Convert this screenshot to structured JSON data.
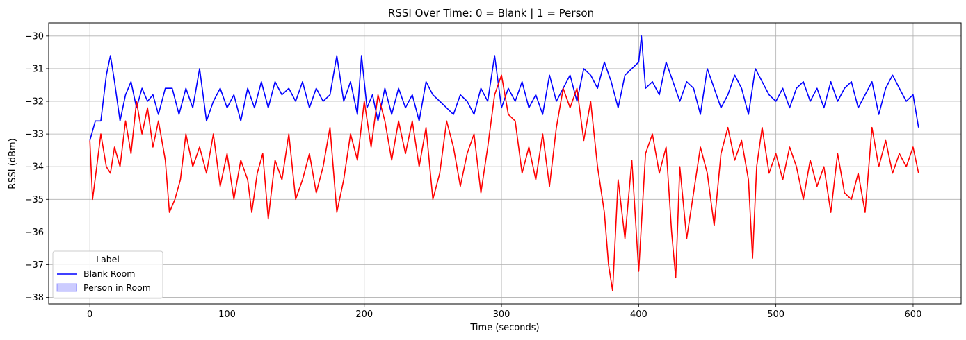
{
  "chart_data": {
    "type": "line",
    "title": "RSSI Over Time: 0 = Blank | 1 = Person",
    "xlabel": "Time (seconds)",
    "ylabel": "RSSI (dBm)",
    "xlim": [
      -30,
      635
    ],
    "ylim": [
      -38.2,
      -29.6
    ],
    "x_ticks": [
      0,
      100,
      200,
      300,
      400,
      500,
      600
    ],
    "y_ticks": [
      -30,
      -31,
      -32,
      -33,
      -34,
      -35,
      -36,
      -37,
      -38
    ],
    "x_tick_labels": [
      "0",
      "100",
      "200",
      "300",
      "400",
      "500",
      "600"
    ],
    "y_tick_labels": [
      "−30",
      "−31",
      "−32",
      "−33",
      "−34",
      "−35",
      "−36",
      "−37",
      "−38"
    ],
    "grid": true,
    "legend": {
      "title": "Label",
      "placement": "lower-left",
      "entries": [
        {
          "label": "Blank Room",
          "kind": "line",
          "color": "#0000ff"
        },
        {
          "label": "Person in Room",
          "kind": "patch",
          "color": "#0000ff"
        }
      ]
    },
    "series": [
      {
        "color": "#0000ff",
        "x": [
          0,
          4,
          8,
          12,
          15,
          18,
          22,
          26,
          30,
          34,
          38,
          42,
          46,
          50,
          55,
          60,
          65,
          70,
          75,
          80,
          85,
          90,
          95,
          100,
          105,
          110,
          115,
          120,
          125,
          130,
          135,
          140,
          145,
          150,
          155,
          160,
          165,
          170,
          175,
          180,
          185,
          190,
          195,
          198,
          202,
          206,
          210,
          215,
          220,
          225,
          230,
          235,
          240,
          245,
          250,
          255,
          260,
          265,
          270,
          275,
          280,
          285,
          290,
          295,
          300,
          305,
          310,
          315,
          320,
          325,
          330,
          335,
          340,
          345,
          350,
          355,
          360,
          365,
          370,
          375,
          380,
          385,
          390,
          395,
          400,
          402,
          405,
          410,
          415,
          420,
          425,
          430,
          435,
          440,
          445,
          450,
          455,
          460,
          465,
          470,
          475,
          480,
          485,
          490,
          495,
          500,
          505,
          510,
          515,
          520,
          525,
          530,
          535,
          540,
          545,
          550,
          555,
          560,
          565,
          570,
          575,
          580,
          585,
          590,
          595,
          600,
          604
        ],
        "y": [
          -33.2,
          -32.6,
          -32.6,
          -31.2,
          -30.6,
          -31.4,
          -32.6,
          -31.8,
          -31.4,
          -32.2,
          -31.6,
          -32.0,
          -31.8,
          -32.4,
          -31.6,
          -31.6,
          -32.4,
          -31.6,
          -32.2,
          -31.0,
          -32.6,
          -32.0,
          -31.6,
          -32.2,
          -31.8,
          -32.6,
          -31.6,
          -32.2,
          -31.4,
          -32.2,
          -31.4,
          -31.8,
          -31.6,
          -32.0,
          -31.4,
          -32.2,
          -31.6,
          -32.0,
          -31.8,
          -30.6,
          -32.0,
          -31.4,
          -32.4,
          -30.6,
          -32.2,
          -31.8,
          -32.6,
          -31.6,
          -32.4,
          -31.6,
          -32.2,
          -31.8,
          -32.6,
          -31.4,
          -31.8,
          -32.0,
          -32.2,
          -32.4,
          -31.8,
          -32.0,
          -32.4,
          -31.6,
          -32.0,
          -30.6,
          -32.2,
          -31.6,
          -32.0,
          -31.4,
          -32.2,
          -31.8,
          -32.4,
          -31.2,
          -32.0,
          -31.6,
          -31.2,
          -32.0,
          -31.0,
          -31.2,
          -31.6,
          -30.8,
          -31.4,
          -32.2,
          -31.2,
          -31.0,
          -30.8,
          -30.0,
          -31.6,
          -31.4,
          -31.8,
          -30.8,
          -31.4,
          -32.0,
          -31.4,
          -31.6,
          -32.4,
          -31.0,
          -31.6,
          -32.2,
          -31.8,
          -31.2,
          -31.6,
          -32.4,
          -31.0,
          -31.4,
          -31.8,
          -32.0,
          -31.6,
          -32.2,
          -31.6,
          -31.4,
          -32.0,
          -31.6,
          -32.2,
          -31.4,
          -32.0,
          -31.6,
          -31.4,
          -32.2,
          -31.8,
          -31.4,
          -32.4,
          -31.6,
          -31.2,
          -31.6,
          -32.0,
          -31.8,
          -32.8
        ]
      },
      {
        "color": "#ff0000",
        "x": [
          0,
          2,
          5,
          8,
          12,
          15,
          18,
          22,
          26,
          30,
          34,
          38,
          42,
          46,
          50,
          55,
          58,
          62,
          66,
          70,
          75,
          80,
          85,
          90,
          95,
          100,
          105,
          110,
          115,
          118,
          122,
          126,
          130,
          135,
          140,
          145,
          150,
          155,
          160,
          165,
          170,
          175,
          180,
          185,
          190,
          195,
          200,
          205,
          210,
          215,
          220,
          225,
          230,
          235,
          240,
          245,
          250,
          255,
          260,
          265,
          270,
          275,
          280,
          285,
          290,
          295,
          300,
          305,
          310,
          315,
          320,
          325,
          330,
          335,
          340,
          345,
          350,
          355,
          360,
          365,
          370,
          375,
          378,
          381,
          385,
          390,
          395,
          400,
          405,
          410,
          415,
          420,
          424,
          427,
          430,
          435,
          440,
          445,
          450,
          455,
          460,
          465,
          470,
          475,
          480,
          483,
          486,
          490,
          495,
          500,
          505,
          510,
          515,
          520,
          525,
          530,
          535,
          540,
          545,
          550,
          555,
          560,
          565,
          570,
          575,
          580,
          585,
          590,
          595,
          600,
          604
        ],
        "y": [
          -33.2,
          -35.0,
          -34.0,
          -33.0,
          -34.0,
          -34.2,
          -33.4,
          -34.0,
          -32.6,
          -33.6,
          -32.0,
          -33.0,
          -32.2,
          -33.4,
          -32.6,
          -33.8,
          -35.4,
          -35.0,
          -34.4,
          -33.0,
          -34.0,
          -33.4,
          -34.2,
          -33.0,
          -34.6,
          -33.6,
          -35.0,
          -33.8,
          -34.4,
          -35.4,
          -34.2,
          -33.6,
          -35.6,
          -33.8,
          -34.4,
          -33.0,
          -35.0,
          -34.4,
          -33.6,
          -34.8,
          -34.0,
          -32.8,
          -35.4,
          -34.4,
          -33.0,
          -33.8,
          -32.0,
          -33.4,
          -31.8,
          -32.6,
          -33.8,
          -32.6,
          -33.6,
          -32.6,
          -34.0,
          -32.8,
          -35.0,
          -34.2,
          -32.6,
          -33.4,
          -34.6,
          -33.6,
          -33.0,
          -34.8,
          -33.4,
          -31.8,
          -31.2,
          -32.4,
          -32.6,
          -34.2,
          -33.4,
          -34.4,
          -33.0,
          -34.6,
          -32.8,
          -31.6,
          -32.2,
          -31.6,
          -33.2,
          -32.0,
          -34.0,
          -35.4,
          -37.0,
          -37.8,
          -34.4,
          -36.2,
          -33.8,
          -37.2,
          -33.6,
          -33.0,
          -34.2,
          -33.4,
          -36.0,
          -37.4,
          -34.0,
          -36.2,
          -34.8,
          -33.4,
          -34.2,
          -35.8,
          -33.6,
          -32.8,
          -33.8,
          -33.2,
          -34.4,
          -36.8,
          -34.0,
          -32.8,
          -34.2,
          -33.6,
          -34.4,
          -33.4,
          -34.0,
          -35.0,
          -33.8,
          -34.6,
          -34.0,
          -35.4,
          -33.6,
          -34.8,
          -35.0,
          -34.2,
          -35.4,
          -32.8,
          -34.0,
          -33.2,
          -34.2,
          -33.6,
          -34.0,
          -33.4,
          -34.2
        ]
      }
    ]
  }
}
